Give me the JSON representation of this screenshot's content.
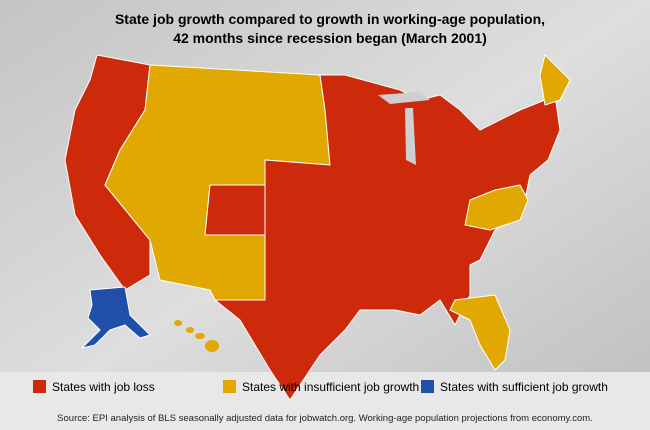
{
  "title": [
    "State job growth compared to growth in working-age population,",
    "42 months since recession began (March 2001)"
  ],
  "legend": [
    {
      "label": "States with job loss",
      "color": "#cc2a0a"
    },
    {
      "label": "States with insufficient job growth",
      "color": "#e0a800"
    },
    {
      "label": "States with sufficient job growth",
      "color": "#1f4fa8"
    }
  ],
  "source": "Source: EPI analysis of BLS seasonally adjusted data for jobwatch.org. Working-age population projections from economy.com."
}
